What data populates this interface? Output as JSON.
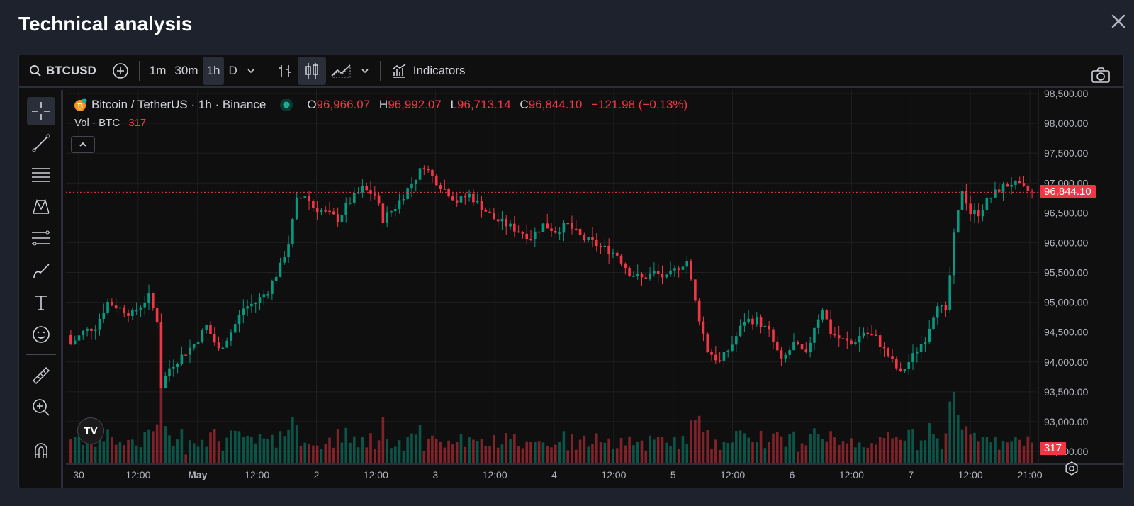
{
  "modal": {
    "title": "Technical analysis"
  },
  "toolbar": {
    "symbol": "BTCUSD",
    "intervals": [
      "1m",
      "30m",
      "1h",
      "D"
    ],
    "active_interval": "1h",
    "indicators_label": "Indicators"
  },
  "legend": {
    "title": "Bitcoin / TetherUS · 1h · Binance",
    "open_label": "O",
    "open": "96,966.07",
    "high_label": "H",
    "high": "96,992.07",
    "low_label": "L",
    "low": "96,713.14",
    "close_label": "C",
    "close": "96,844.10",
    "change": "−121.98 (−0.13%)",
    "vol_label": "Vol · BTC",
    "vol_value": "317"
  },
  "colors": {
    "up": "#089981",
    "down": "#f23645",
    "background": "#0f0f0f",
    "grid": "#1f1f1f"
  },
  "chart_data": {
    "type": "candlestick",
    "interval": "1h",
    "y_ticks": [
      "98,500.00",
      "98,000.00",
      "97,500.00",
      "97,000.00",
      "96,500.00",
      "96,000.00",
      "95,500.00",
      "95,000.00",
      "94,500.00",
      "94,000.00",
      "93,500.00",
      "93,000.00",
      "92,500.00"
    ],
    "x_ticks": [
      "30",
      "12:00",
      "May",
      "12:00",
      "2",
      "12:00",
      "3",
      "12:00",
      "4",
      "12:00",
      "5",
      "12:00",
      "6",
      "12:00",
      "7",
      "12:00",
      "21:00"
    ],
    "ylim": [
      92500,
      98500
    ],
    "last_price": 96844.1,
    "last_price_label": "96,844.10",
    "last_volume_label": "317",
    "close_path": [
      [
        0,
        94300
      ],
      [
        3,
        94500
      ],
      [
        6,
        94600
      ],
      [
        9,
        95000
      ],
      [
        12,
        94900
      ],
      [
        15,
        94800
      ],
      [
        19,
        95100
      ],
      [
        21,
        94700
      ],
      [
        22,
        93600
      ],
      [
        24,
        93900
      ],
      [
        27,
        94100
      ],
      [
        30,
        94300
      ],
      [
        33,
        94600
      ],
      [
        36,
        94200
      ],
      [
        39,
        94500
      ],
      [
        42,
        94900
      ],
      [
        45,
        95000
      ],
      [
        48,
        95200
      ],
      [
        51,
        95600
      ],
      [
        53,
        96000
      ],
      [
        55,
        96700
      ],
      [
        57,
        96800
      ],
      [
        59,
        96600
      ],
      [
        62,
        96500
      ],
      [
        65,
        96400
      ],
      [
        68,
        96700
      ],
      [
        71,
        96900
      ],
      [
        74,
        96800
      ],
      [
        76,
        96400
      ],
      [
        79,
        96600
      ],
      [
        82,
        96900
      ],
      [
        84,
        97100
      ],
      [
        86,
        97300
      ],
      [
        88,
        97100
      ],
      [
        91,
        96900
      ],
      [
        94,
        96700
      ],
      [
        97,
        96800
      ],
      [
        100,
        96600
      ],
      [
        103,
        96400
      ],
      [
        106,
        96300
      ],
      [
        109,
        96200
      ],
      [
        112,
        96100
      ],
      [
        115,
        96300
      ],
      [
        118,
        96200
      ],
      [
        121,
        96300
      ],
      [
        124,
        96100
      ],
      [
        127,
        96000
      ],
      [
        130,
        95900
      ],
      [
        133,
        95800
      ],
      [
        136,
        95500
      ],
      [
        139,
        95400
      ],
      [
        142,
        95500
      ],
      [
        145,
        95400
      ],
      [
        148,
        95600
      ],
      [
        150,
        95700
      ],
      [
        152,
        95000
      ],
      [
        155,
        94200
      ],
      [
        158,
        94000
      ],
      [
        161,
        94300
      ],
      [
        164,
        94700
      ],
      [
        167,
        94700
      ],
      [
        170,
        94500
      ],
      [
        173,
        94000
      ],
      [
        176,
        94300
      ],
      [
        179,
        94100
      ],
      [
        181,
        94600
      ],
      [
        183,
        94900
      ],
      [
        185,
        94500
      ],
      [
        187,
        94400
      ],
      [
        190,
        94300
      ],
      [
        193,
        94500
      ],
      [
        196,
        94400
      ],
      [
        199,
        94100
      ],
      [
        202,
        93800
      ],
      [
        205,
        94100
      ],
      [
        208,
        94400
      ],
      [
        211,
        95000
      ],
      [
        213,
        94800
      ],
      [
        215,
        96100
      ],
      [
        217,
        96900
      ],
      [
        219,
        96500
      ],
      [
        221,
        96500
      ],
      [
        223,
        96700
      ],
      [
        226,
        96900
      ],
      [
        229,
        97000
      ],
      [
        232,
        96900
      ],
      [
        234,
        96844
      ]
    ],
    "volume_max": 8000
  }
}
